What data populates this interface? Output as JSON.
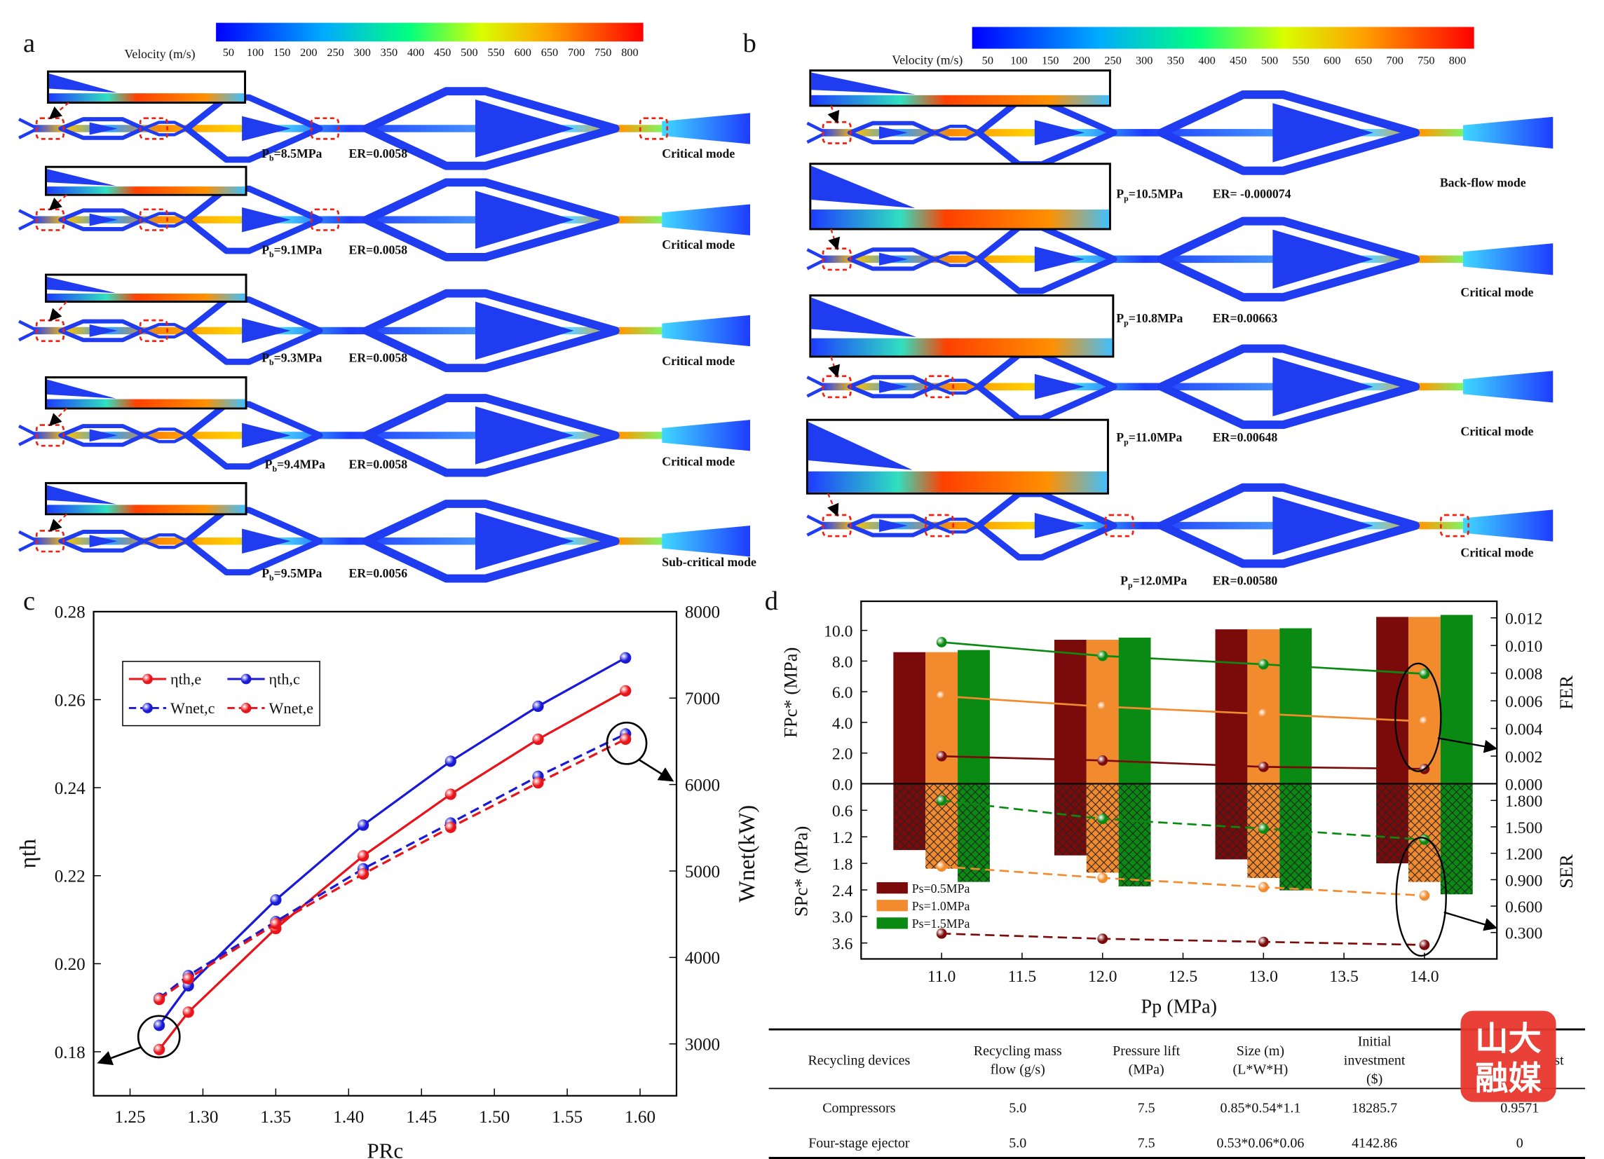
{
  "panel_labels": [
    "a",
    "b",
    "c",
    "d"
  ],
  "panel_a": {
    "colorbar": {
      "title": "Velocity (m/s)",
      "ticks": [
        50,
        100,
        150,
        200,
        250,
        300,
        350,
        400,
        450,
        500,
        550,
        600,
        650,
        700,
        750,
        800
      ]
    },
    "rows": [
      {
        "symbol": "P",
        "sub": "b",
        "value": "=8.5MPa",
        "er": "ER=0.0058",
        "mode": "Critical mode"
      },
      {
        "symbol": "P",
        "sub": "b",
        "value": "=9.1MPa",
        "er": "ER=0.0058",
        "mode": "Critical mode"
      },
      {
        "symbol": "P",
        "sub": "b",
        "value": "=9.3MPa",
        "er": "ER=0.0058",
        "mode": "Critical mode"
      },
      {
        "symbol": "P",
        "sub": "b",
        "value": "=9.4MPa",
        "er": "ER=0.0058",
        "mode": "Critical mode"
      },
      {
        "symbol": "P",
        "sub": "b",
        "value": "=9.5MPa",
        "er": "ER=0.0056",
        "mode": "Sub-critical mode"
      }
    ]
  },
  "panel_b": {
    "colorbar": {
      "title": "Velocity (m/s)",
      "ticks": [
        50,
        100,
        150,
        200,
        250,
        300,
        350,
        400,
        450,
        500,
        550,
        600,
        650,
        700,
        750,
        800
      ]
    },
    "rows": [
      {
        "symbol": "P",
        "sub": "p",
        "value": "=10.5MPa",
        "er": "ER= -0.000074",
        "mode": "Back-flow mode"
      },
      {
        "symbol": "P",
        "sub": "p",
        "value": "=10.8MPa",
        "er": "ER=0.00663",
        "mode": "Critical mode"
      },
      {
        "symbol": "P",
        "sub": "p",
        "value": "=11.0MPa",
        "er": "ER=0.00648",
        "mode": "Critical mode"
      },
      {
        "symbol": "P",
        "sub": "p",
        "value": "=12.0MPa",
        "er": "ER=0.00580",
        "mode": "Critical mode"
      }
    ]
  },
  "chart_data": [
    {
      "type": "line",
      "xlabel": "PRc",
      "ylabel": "ηth",
      "y2label": "Wnet(kW)",
      "x": [
        1.27,
        1.29,
        1.35,
        1.41,
        1.47,
        1.53,
        1.59
      ],
      "xlim": [
        1.225,
        1.625
      ],
      "xticks": [
        1.25,
        {
          "value": 1.3,
          "label": "1.30"
        },
        1.35,
        {
          "value": 1.4,
          "label": "1.40"
        },
        1.45,
        {
          "value": 1.5,
          "label": "1.50"
        },
        1.55,
        {
          "value": 1.6,
          "label": "1.60"
        }
      ],
      "ylim": [
        0.17,
        0.28
      ],
      "yticks": [
        0.18,
        {
          "value": 0.2,
          "label": "0.20"
        },
        0.22,
        0.24,
        0.26,
        0.28
      ],
      "y2lim": [
        2400,
        8000
      ],
      "y2ticks": [
        3000,
        4000,
        5000,
        6000,
        7000,
        8000
      ],
      "legend": "upper left",
      "grid": false,
      "series": [
        {
          "name": "ηth,e",
          "color": "#e8141b",
          "dash": false,
          "values": [
            0.1805,
            0.189,
            0.208,
            0.2245,
            0.2385,
            0.251,
            0.262
          ]
        },
        {
          "name": "ηth,c",
          "color": "#1a1ad6",
          "dash": false,
          "values": [
            0.186,
            0.195,
            0.2145,
            0.2315,
            0.246,
            0.2585,
            0.2695
          ]
        },
        {
          "name": "Wnet,c",
          "color": "#1a1ad6",
          "dash": true,
          "axis": "y2",
          "values": [
            3528,
            3790,
            4415,
            5025,
            5555,
            6095,
            6585
          ]
        },
        {
          "name": "Wnet,e",
          "color": "#e8141b",
          "dash": true,
          "axis": "y2",
          "values": [
            3515,
            3755,
            4390,
            4965,
            5505,
            6020,
            6525
          ]
        }
      ]
    },
    {
      "type": "combo",
      "xlabel": "Pp (MPa)",
      "ylabel": "FPc* (MPa)",
      "ylabel_bottom": "SPc* (MPa)",
      "y2label": "FER",
      "y2label_bottom": "SER",
      "x": [
        11,
        12,
        13,
        14
      ],
      "xlim": [
        10.5,
        14.45
      ],
      "xticks": [
        {
          "value": 11,
          "label": "11.0"
        },
        11.5,
        {
          "value": 12,
          "label": "12.0"
        },
        12.5,
        {
          "value": 13,
          "label": "13.0"
        },
        13.5,
        {
          "value": 14,
          "label": "14.0"
        }
      ],
      "ylim": [
        0,
        11.9
      ],
      "yticks": [
        {
          "value": 0,
          "label": "0.0"
        },
        {
          "value": 2,
          "label": "2.0"
        },
        {
          "value": 4,
          "label": "4.0"
        },
        {
          "value": 6,
          "label": "6.0"
        },
        {
          "value": 8,
          "label": "8.0"
        },
        {
          "value": 10,
          "label": "10.0"
        }
      ],
      "ylim_bottom": [
        0,
        3.96
      ],
      "yticks_bottom": [
        0.6,
        1.2,
        1.8,
        2.4,
        {
          "value": 3,
          "label": "3.0"
        },
        3.6
      ],
      "y2lim": [
        0,
        0.0132
      ],
      "y2ticks": [
        {
          "value": 0,
          "label": "0.000"
        },
        {
          "value": 0.002,
          "label": "0.002"
        },
        {
          "value": 0.004,
          "label": "0.004"
        },
        {
          "value": 0.006,
          "label": "0.006"
        },
        {
          "value": 0.008,
          "label": "0.008"
        },
        {
          "value": 0.01,
          "label": "0.010"
        },
        {
          "value": 0.012,
          "label": "0.012"
        }
      ],
      "y2lim_bottom": [
        1.99,
        0
      ],
      "y2ticks_bottom": [
        {
          "value": 1.8,
          "label": "1.800"
        },
        {
          "value": 1.5,
          "label": "1.500"
        },
        {
          "value": 1.2,
          "label": "1.200"
        },
        {
          "value": 0.9,
          "label": "0.900"
        },
        {
          "value": 0.6,
          "label": "0.600"
        },
        {
          "value": 0.3,
          "label": "0.300"
        }
      ],
      "legend": "lower left",
      "series": [
        {
          "name": "Ps=0.5MPa",
          "color": "#7b0b0b",
          "values": [
            8.58,
            9.39,
            10.07,
            10.88
          ],
          "values_bottom": [
            1.5,
            1.62,
            1.71,
            1.8
          ],
          "fer": [
            0.00199,
            0.00168,
            0.00122,
            0.00107
          ],
          "ser": [
            0.288,
            0.229,
            0.194,
            0.159
          ]
        },
        {
          "name": "Ps=1.0MPa",
          "color": "#f28a2e",
          "values": [
            8.58,
            9.39,
            10.07,
            10.88
          ],
          "values_bottom": [
            1.92,
            2.01,
            2.13,
            2.22
          ],
          "fer": [
            0.00634,
            0.00558,
            0.00505,
            0.00451
          ],
          "ser": [
            1.05,
            0.92,
            0.815,
            0.72
          ]
        },
        {
          "name": "Ps=1.5MPa",
          "color": "#0a8a12",
          "values": [
            8.72,
            9.53,
            10.14,
            11.01
          ],
          "values_bottom": [
            2.22,
            2.32,
            2.41,
            2.5
          ],
          "fer": [
            0.01024,
            0.00925,
            0.00864,
            0.00795
          ],
          "ser": [
            1.8,
            1.59,
            1.48,
            1.355
          ]
        }
      ]
    }
  ],
  "table": {
    "header": [
      [
        "Recycling devices"
      ],
      [
        "Recycling mass",
        "flow (g/s)"
      ],
      [
        "Pressure lift",
        "(MPa)"
      ],
      [
        "Size (m)",
        "(L*W*H)"
      ],
      [
        "Initial",
        "investment",
        "($)"
      ],
      [
        "st"
      ]
    ],
    "rows": [
      [
        "Compressors",
        "5.0",
        "7.5",
        "0.85*0.54*1.1",
        "18285.7",
        "0.9571"
      ],
      [
        "Four-stage ejector",
        "5.0",
        "7.5",
        "0.53*0.06*0.06",
        "4142.86",
        "0"
      ]
    ]
  },
  "watermark": [
    "山大",
    "融媒"
  ]
}
